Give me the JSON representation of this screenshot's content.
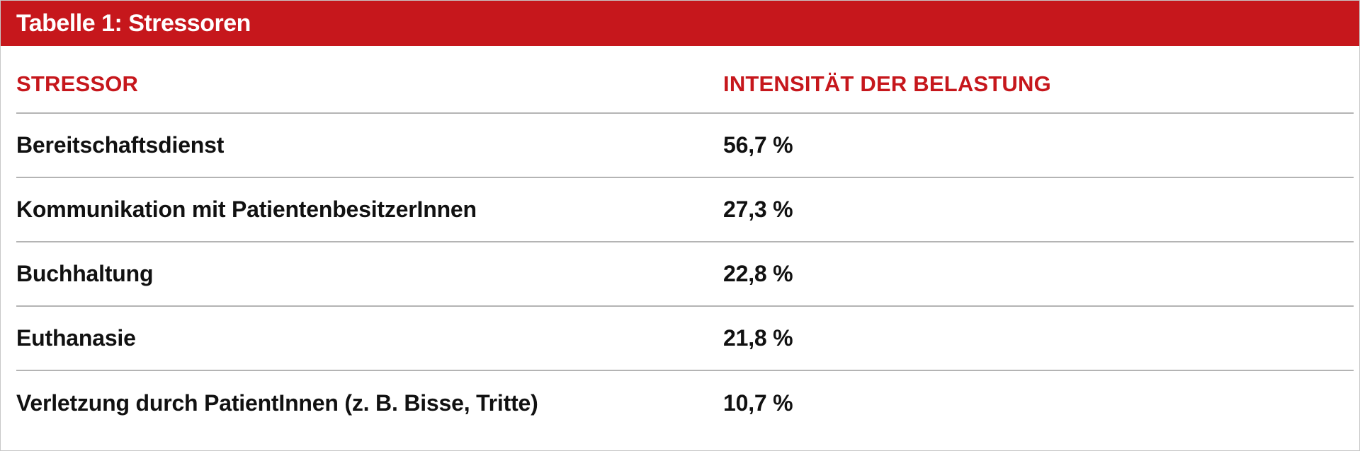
{
  "table": {
    "title": "Tabelle 1: Stressoren",
    "headers": {
      "stressor": "STRESSOR",
      "intensity": "INTENSITÄT DER BELASTUNG"
    },
    "rows": [
      {
        "stressor": "Bereitschaftsdienst",
        "intensity": "56,7 %"
      },
      {
        "stressor": "Kommunikation mit PatientenbesitzerInnen",
        "intensity": "27,3 %"
      },
      {
        "stressor": "Buchhaltung",
        "intensity": "22,8 %"
      },
      {
        "stressor": "Euthanasie",
        "intensity": "21,8 %"
      },
      {
        "stressor": "Verletzung durch PatientInnen (z. B. Bisse, Tritte)",
        "intensity": "10,7 %"
      }
    ]
  },
  "colors": {
    "accent": "#c6171c",
    "text": "#111111",
    "rule": "#b4b4b4"
  }
}
